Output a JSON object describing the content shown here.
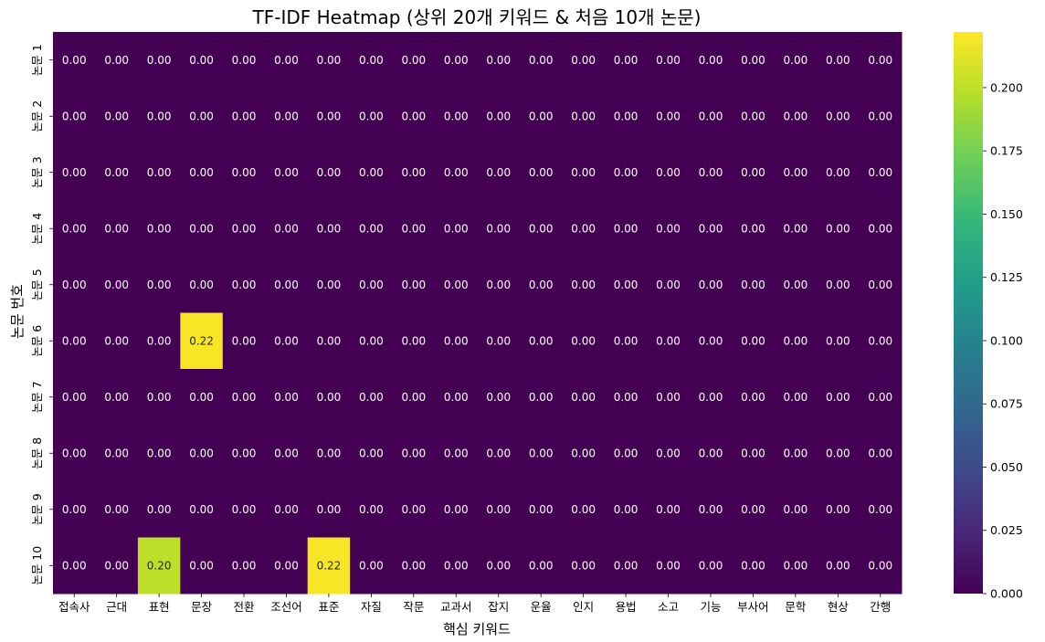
{
  "chart_data": {
    "type": "heatmap",
    "title": "TF-IDF Heatmap (상위 20개 키워드 & 처음 10개 논문)",
    "xlabel": "핵심 키워드",
    "ylabel": "논문 번호",
    "x_categories": [
      "접속사",
      "근대",
      "표현",
      "문장",
      "전환",
      "조선어",
      "표준",
      "자질",
      "작문",
      "교과서",
      "잡지",
      "운율",
      "인지",
      "용법",
      "소고",
      "기능",
      "부사어",
      "문학",
      "현상",
      "간행"
    ],
    "y_categories": [
      "논문 1",
      "논문 2",
      "논문 3",
      "논문 4",
      "논문 5",
      "논문 6",
      "논문 7",
      "논문 8",
      "논문 9",
      "논문 10"
    ],
    "values": [
      [
        0,
        0,
        0,
        0,
        0,
        0,
        0,
        0,
        0,
        0,
        0,
        0,
        0,
        0,
        0,
        0,
        0,
        0,
        0,
        0
      ],
      [
        0,
        0,
        0,
        0,
        0,
        0,
        0,
        0,
        0,
        0,
        0,
        0,
        0,
        0,
        0,
        0,
        0,
        0,
        0,
        0
      ],
      [
        0,
        0,
        0,
        0,
        0,
        0,
        0,
        0,
        0,
        0,
        0,
        0,
        0,
        0,
        0,
        0,
        0,
        0,
        0,
        0
      ],
      [
        0,
        0,
        0,
        0,
        0,
        0,
        0,
        0,
        0,
        0,
        0,
        0,
        0,
        0,
        0,
        0,
        0,
        0,
        0,
        0
      ],
      [
        0,
        0,
        0,
        0,
        0,
        0,
        0,
        0,
        0,
        0,
        0,
        0,
        0,
        0,
        0,
        0,
        0,
        0,
        0,
        0
      ],
      [
        0,
        0,
        0,
        0.22,
        0,
        0,
        0,
        0,
        0,
        0,
        0,
        0,
        0,
        0,
        0,
        0,
        0,
        0,
        0,
        0
      ],
      [
        0,
        0,
        0,
        0,
        0,
        0,
        0,
        0,
        0,
        0,
        0,
        0,
        0,
        0,
        0,
        0,
        0,
        0,
        0,
        0
      ],
      [
        0,
        0,
        0,
        0,
        0,
        0,
        0,
        0,
        0,
        0,
        0,
        0,
        0,
        0,
        0,
        0,
        0,
        0,
        0,
        0
      ],
      [
        0,
        0,
        0,
        0,
        0,
        0,
        0,
        0,
        0,
        0,
        0,
        0,
        0,
        0,
        0,
        0,
        0,
        0,
        0,
        0
      ],
      [
        0,
        0,
        0.2,
        0,
        0,
        0,
        0.22,
        0,
        0,
        0,
        0,
        0,
        0,
        0,
        0,
        0,
        0,
        0,
        0,
        0
      ]
    ],
    "value_format": "0.00",
    "colormap": "viridis",
    "vmin": 0,
    "vmax": 0.222,
    "colorbar_ticks": [
      "0.000",
      "0.025",
      "0.050",
      "0.075",
      "0.100",
      "0.125",
      "0.150",
      "0.175",
      "0.200"
    ],
    "grid": false
  }
}
